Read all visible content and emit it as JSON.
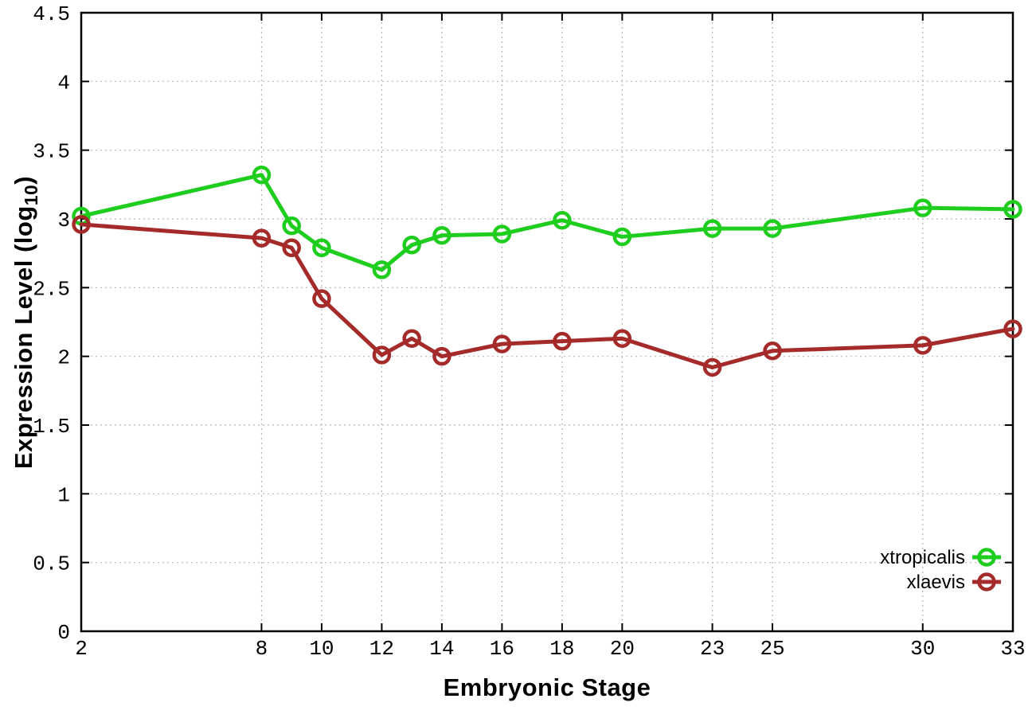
{
  "page": {
    "background": "#ffffff"
  },
  "chart_data": {
    "type": "line",
    "title": "",
    "xlabel": "Embryonic Stage",
    "ylabel": "Expression Level (log10)",
    "ylabel_parts": {
      "pre": "Expression Level (log",
      "sub": "10",
      "post": ")"
    },
    "xlim": [
      2,
      33
    ],
    "ylim": [
      0,
      4.5
    ],
    "x_ticks": [
      2,
      8,
      10,
      12,
      14,
      16,
      18,
      20,
      23,
      25,
      30,
      33
    ],
    "x_tick_labels": [
      "2",
      "8",
      "10",
      "12",
      "14",
      "16",
      "18",
      "20",
      "23",
      "25",
      "30",
      "33"
    ],
    "y_ticks": [
      0,
      0.5,
      1,
      1.5,
      2,
      2.5,
      3,
      3.5,
      4,
      4.5
    ],
    "y_tick_labels": [
      "0",
      "0.5",
      "1",
      "1.5",
      "2",
      "2.5",
      "3",
      "3.5",
      "4",
      "4.5"
    ],
    "grid": true,
    "grid_style": "dotted",
    "legend_position": "inside-bottom-right",
    "marker": "open-circle",
    "x": [
      2,
      8,
      9,
      10,
      12,
      13,
      14,
      16,
      18,
      20,
      23,
      25,
      30,
      33
    ],
    "series": [
      {
        "name": "xtropicalis",
        "color": "#1ecd1e",
        "values": [
          3.02,
          3.32,
          2.95,
          2.79,
          2.63,
          2.81,
          2.88,
          2.89,
          2.99,
          2.87,
          2.93,
          2.93,
          3.08,
          3.07
        ]
      },
      {
        "name": "xlaevis",
        "color": "#a52a2a",
        "values": [
          2.96,
          2.86,
          2.79,
          2.42,
          2.01,
          2.13,
          2.0,
          2.09,
          2.11,
          2.13,
          1.92,
          2.04,
          2.08,
          2.2
        ]
      }
    ],
    "colors": {
      "grid": "#b4b4b4",
      "border": "#000000",
      "text": "#000000"
    }
  }
}
